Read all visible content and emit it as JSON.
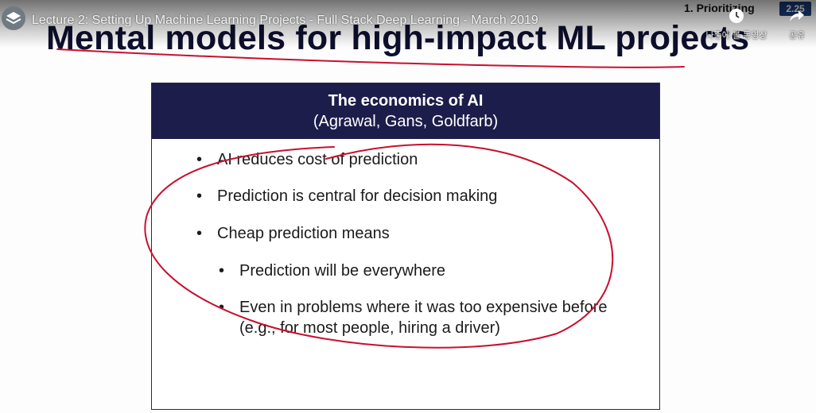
{
  "player": {
    "video_title": "Lecture 2: Setting Up Machine Learning Projects - Full Stack Deep Learning - March 2019",
    "watch_later_label": "나중에 볼 동영상",
    "share_label": "공유",
    "corner_heading": "1. Prioritizing",
    "time_badge": "2.25"
  },
  "slide": {
    "title": "Mental models for high-impact ML projects",
    "box_title": "The economics of AI",
    "box_subtitle": "(Agrawal, Gans, Goldfarb)",
    "bullets": [
      "AI reduces cost of prediction",
      "Prediction is central for decision making",
      "Cheap prediction means"
    ],
    "sub_bullets": [
      "Prediction will be everywhere",
      "Even in problems where it was too expensive before (e.g., for most people, hiring a driver)"
    ],
    "bullet_symbol": "•"
  },
  "colors": {
    "header_bg": "#1d1d4b",
    "ink_red": "#c8102e",
    "title_text": "#0d0f2e"
  },
  "icons": [
    "channel-logo-icon",
    "clock-icon",
    "share-icon"
  ]
}
